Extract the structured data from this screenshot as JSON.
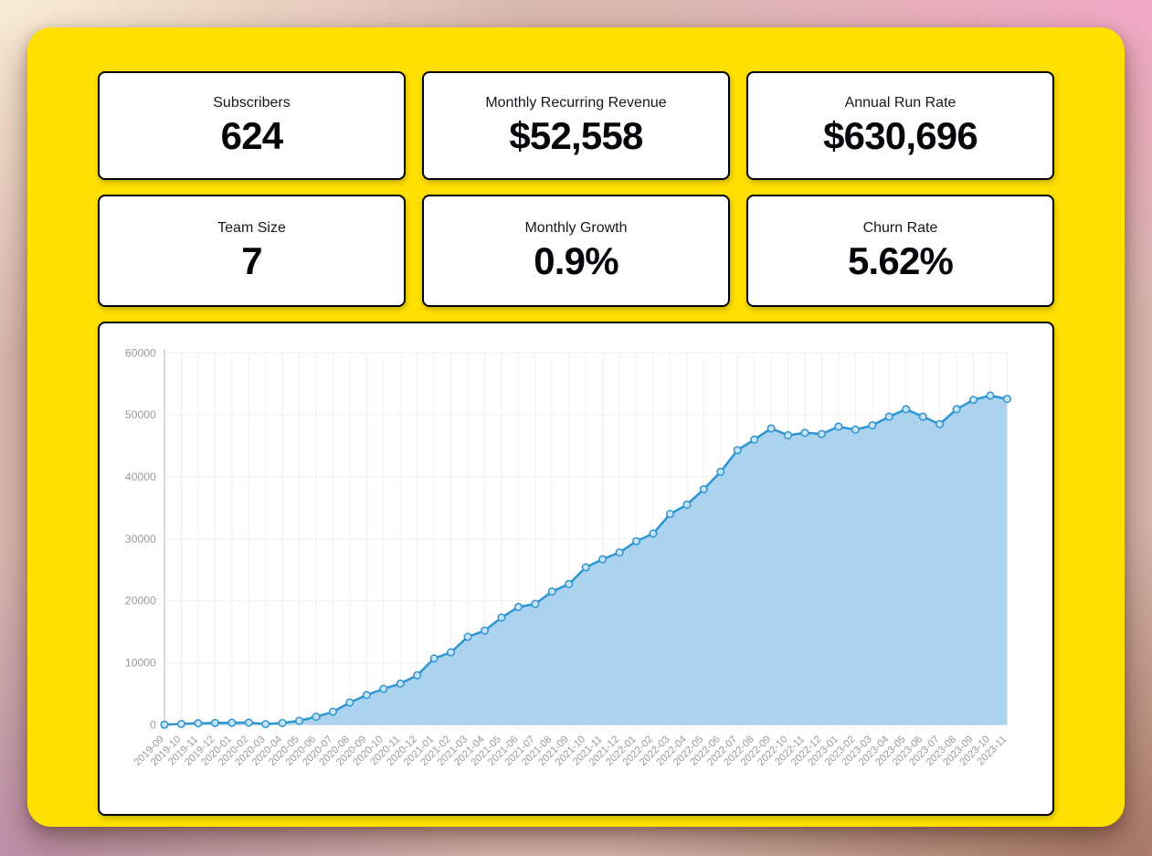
{
  "theme": {
    "board_yellow": "#ffe000",
    "card_bg": "#ffffff",
    "card_border": "#000000",
    "stat_text": "#04060a"
  },
  "stats": [
    {
      "id": "subscribers",
      "label": "Subscribers",
      "value": "624"
    },
    {
      "id": "mrr",
      "label": "Monthly Recurring Revenue",
      "value": "$52,558"
    },
    {
      "id": "arr",
      "label": "Annual Run Rate",
      "value": "$630,696"
    },
    {
      "id": "team-size",
      "label": "Team Size",
      "value": "7"
    },
    {
      "id": "monthly-growth",
      "label": "Monthly Growth",
      "value": "0.9%"
    },
    {
      "id": "churn-rate",
      "label": "Churn Rate",
      "value": "5.62%"
    }
  ],
  "chart_data": {
    "type": "area",
    "title": "",
    "xlabel": "",
    "ylabel": "",
    "ylim": [
      0,
      60000
    ],
    "y_ticks": [
      0,
      10000,
      20000,
      30000,
      40000,
      50000,
      60000
    ],
    "grid": true,
    "legend": false,
    "x": [
      "2019-09",
      "2019-10",
      "2019-11",
      "2019-12",
      "2020-01",
      "2020-02",
      "2020-03",
      "2020-04",
      "2020-05",
      "2020-06",
      "2020-07",
      "2020-08",
      "2020-09",
      "2020-10",
      "2020-11",
      "2020-12",
      "2021-01",
      "2021-02",
      "2021-03",
      "2021-04",
      "2021-05",
      "2021-06",
      "2021-07",
      "2021-08",
      "2021-09",
      "2021-10",
      "2021-11",
      "2021-12",
      "2022-01",
      "2022-02",
      "2022-03",
      "2022-04",
      "2022-05",
      "2022-06",
      "2022-07",
      "2022-08",
      "2022-09",
      "2022-10",
      "2022-11",
      "2022-12",
      "2023-01",
      "2023-02",
      "2023-03",
      "2023-04",
      "2023-05",
      "2023-06",
      "2023-07",
      "2023-08",
      "2023-09",
      "2023-10",
      "2023-11"
    ],
    "series": [
      {
        "name": "Monthly Recurring Revenue",
        "values": [
          25,
          150,
          250,
          300,
          330,
          360,
          120,
          300,
          650,
          1300,
          2100,
          3600,
          4800,
          5800,
          6650,
          8000,
          10700,
          11700,
          14200,
          15200,
          17300,
          19000,
          19500,
          21500,
          22700,
          25400,
          26700,
          27800,
          29600,
          30850,
          34000,
          35500,
          38000,
          40800,
          44300,
          46000,
          47800,
          46700,
          47100,
          46900,
          48100,
          47600,
          48300,
          49700,
          50900,
          49700,
          48500,
          50900,
          52400,
          53100,
          52558
        ]
      }
    ],
    "colors": {
      "line": "#2e97d1",
      "area_fill": "#abd3ef",
      "point_fill": "#c9e2f6",
      "grid": "#efefef",
      "y_axis_line": "#cfcfcf",
      "x_axis_line": "#dedede",
      "axis_text": "#9a9a9a"
    }
  }
}
